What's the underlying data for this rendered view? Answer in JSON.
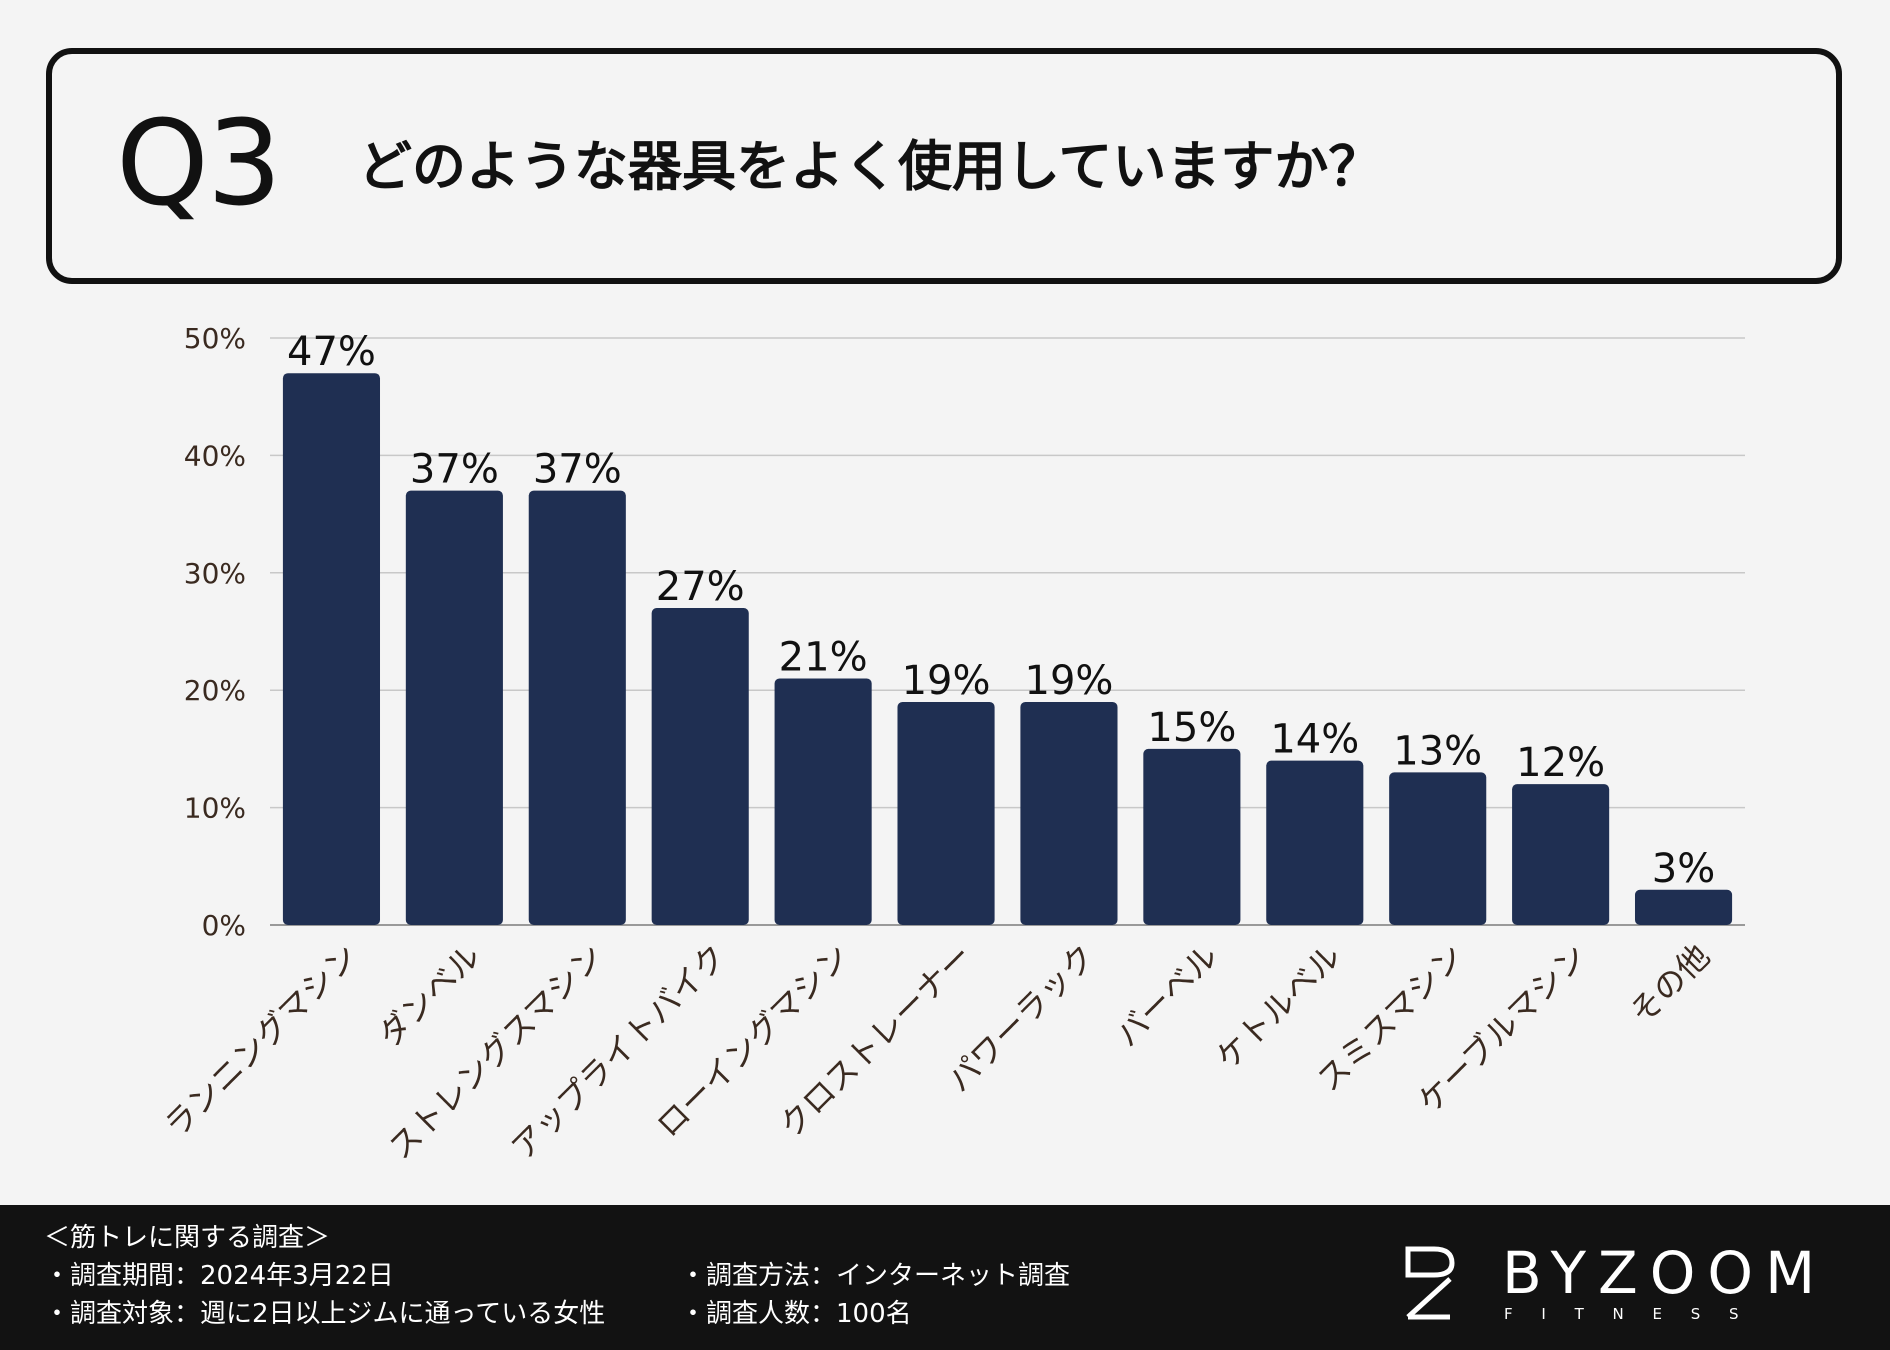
{
  "question": {
    "number": "Q3",
    "text": "どのような器具をよく使用していますか？"
  },
  "chart_data": {
    "type": "bar",
    "categories": [
      "ランニングマシン",
      "ダンベル",
      "ストレングスマシン",
      "アップライトバイク",
      "ローイングマシン",
      "クロストレーナー",
      "パワーラック",
      "バーベル",
      "ケトルベル",
      "スミスマシン",
      "ケーブルマシン",
      "その他"
    ],
    "values": [
      47,
      37,
      37,
      27,
      21,
      19,
      19,
      15,
      14,
      13,
      12,
      3
    ],
    "value_labels": [
      "47%",
      "37%",
      "37%",
      "27%",
      "21%",
      "19%",
      "19%",
      "15%",
      "14%",
      "13%",
      "12%",
      "3%"
    ],
    "y_ticks": [
      "0%",
      "10%",
      "20%",
      "30%",
      "40%",
      "50%"
    ],
    "y_tick_values": [
      0,
      10,
      20,
      30,
      40,
      50
    ],
    "ylim": [
      0,
      50
    ],
    "grid": true,
    "bar_color": "#1f2f52",
    "grid_color": "#c8c8c8",
    "label_color": "#3a2a20"
  },
  "footer": {
    "survey_title": "＜筋トレに関する調査＞",
    "period": "・調査期間：2024年3月22日",
    "target": "・調査対象：週に2日以上ジムに通っている女性",
    "method": "・調査方法：インターネット調査",
    "count": "・調査人数：100名"
  },
  "logo": {
    "wordmark": "BYZOOM",
    "subtitle": "F I T N E S S"
  }
}
